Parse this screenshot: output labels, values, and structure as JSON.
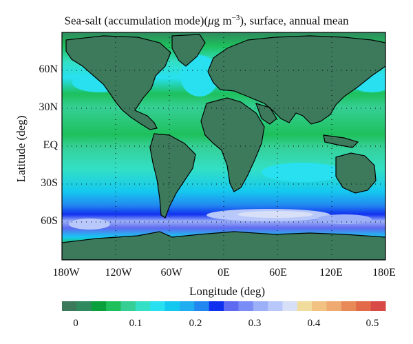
{
  "title": {
    "prefix": "Sea-salt (accumulation mode)(",
    "mu": "μ",
    "unit": "g m",
    "exponent": "−3",
    "suffix": "), surface, annual mean"
  },
  "axes": {
    "xlabel": "Longitude (deg)",
    "ylabel": "Latitude (deg)",
    "x_ticks": [
      "180W",
      "120W",
      "60W",
      "0E",
      "60E",
      "120E",
      "180E"
    ],
    "y_ticks": [
      "60N",
      "30N",
      "EQ",
      "30S",
      "60S"
    ]
  },
  "colorbar": {
    "ticks": [
      "0",
      "0.1",
      "0.2",
      "0.3",
      "0.4",
      "0.5"
    ],
    "colors": [
      "#3d7a5c",
      "#2f8a5e",
      "#0aa03c",
      "#1ec05c",
      "#35cf95",
      "#33e0c5",
      "#28e0f0",
      "#15c8f0",
      "#20aef0",
      "#2288f0",
      "#1030f0",
      "#5e6af0",
      "#7a8cf5",
      "#9cb0f8",
      "#b8c8fa",
      "#d8e0f8",
      "#f0dc9c",
      "#f2c282",
      "#eeaa70",
      "#e88a58",
      "#e26a48",
      "#d84a45"
    ]
  },
  "chart_data": {
    "type": "heatmap",
    "title": "Sea-salt (accumulation mode)(μg m−3), surface, annual mean",
    "xlabel": "Longitude (deg)",
    "ylabel": "Latitude (deg)",
    "xlim": [
      -180,
      180
    ],
    "ylim": [
      -90,
      90
    ],
    "x_ticks": [
      "180W",
      "120W",
      "60W",
      "0E",
      "60E",
      "120E",
      "180E"
    ],
    "y_ticks": [
      "60N",
      "30N",
      "EQ",
      "30S",
      "60S"
    ],
    "colorbar_range": [
      -0.025,
      0.525
    ],
    "colorbar_step": 0.025,
    "grid": "dotted",
    "zonal_mean_values": [
      {
        "lat": 75,
        "value": 0.03
      },
      {
        "lat": 60,
        "value": 0.1
      },
      {
        "lat": 45,
        "value": 0.17
      },
      {
        "lat": 30,
        "value": 0.13
      },
      {
        "lat": 15,
        "value": 0.09
      },
      {
        "lat": 0,
        "value": 0.08
      },
      {
        "lat": -15,
        "value": 0.1
      },
      {
        "lat": -30,
        "value": 0.18
      },
      {
        "lat": -45,
        "value": 0.24
      },
      {
        "lat": -55,
        "value": 0.37
      },
      {
        "lat": -62,
        "value": 0.2
      },
      {
        "lat": -70,
        "value": 0.03
      },
      {
        "lat": -85,
        "value": 0.0
      }
    ]
  }
}
